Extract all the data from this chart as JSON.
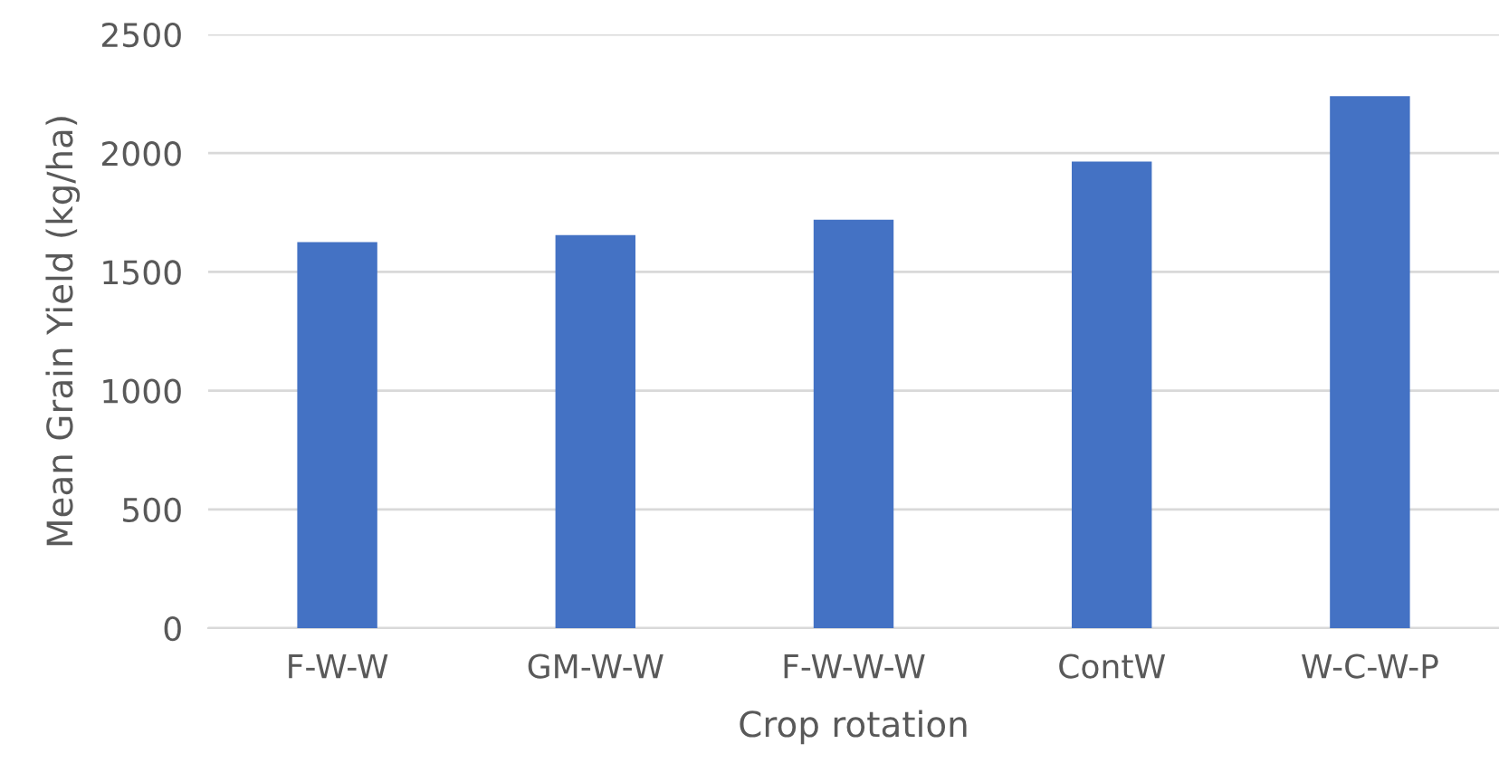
{
  "chart_data": {
    "type": "bar",
    "xlabel": "Crop rotation",
    "ylabel": "Mean Grain Yield (kg/ha)",
    "categories": [
      "F-W-W",
      "GM-W-W",
      "F-W-W-W",
      "ContW",
      "W-C-W-P"
    ],
    "values": [
      1625,
      1655,
      1720,
      1965,
      2240
    ],
    "color": "#4472c4",
    "ylim": [
      0,
      2500
    ],
    "yticks": [
      0,
      500,
      1000,
      1500,
      2000,
      2500
    ],
    "grid": "y",
    "legend": false
  }
}
